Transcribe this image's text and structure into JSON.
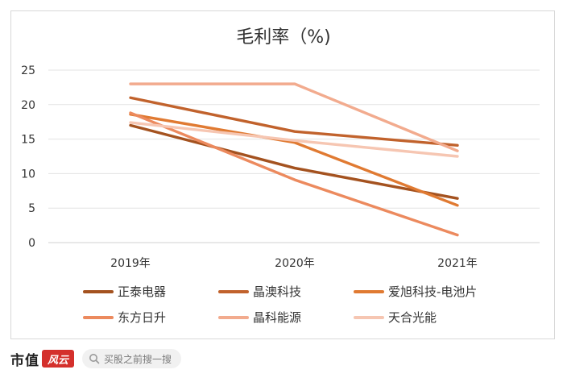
{
  "chart_data": {
    "type": "line",
    "title": "毛利率（%)",
    "categories": [
      "2019年",
      "2020年",
      "2021年"
    ],
    "ylim": [
      0,
      25
    ],
    "yticks": [
      0,
      5,
      10,
      15,
      20,
      25
    ],
    "grid": true,
    "legend_position": "bottom",
    "series": [
      {
        "name": "正泰电器",
        "values": [
          17.0,
          10.8,
          6.4
        ],
        "color": "#a4521f"
      },
      {
        "name": "晶澳科技",
        "values": [
          21.0,
          16.1,
          14.1
        ],
        "color": "#c1622c"
      },
      {
        "name": "爱旭科技-电池片",
        "values": [
          18.6,
          14.5,
          5.4
        ],
        "color": "#e07a32"
      },
      {
        "name": "东方日升",
        "values": [
          18.8,
          9.1,
          1.1
        ],
        "color": "#ec8a5e"
      },
      {
        "name": "晶科能源",
        "values": [
          23.0,
          23.0,
          13.3
        ],
        "color": "#f2ab8e"
      },
      {
        "name": "天合光能",
        "values": [
          17.4,
          14.8,
          12.5
        ],
        "color": "#f6c6b2"
      }
    ]
  },
  "footer": {
    "brand": "市值",
    "badge": "风云",
    "search_text": "买股之前搜一搜"
  }
}
